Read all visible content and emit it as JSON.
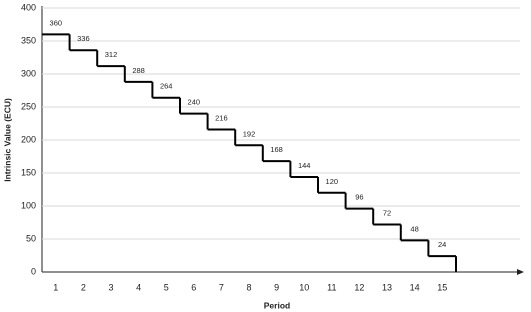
{
  "chart_data": {
    "type": "step",
    "x_label": "Period",
    "y_label": "Intrinsic Value (ECU)",
    "categories": [
      "1",
      "2",
      "3",
      "4",
      "5",
      "6",
      "7",
      "8",
      "9",
      "10",
      "11",
      "12",
      "13",
      "14",
      "15"
    ],
    "values": [
      360,
      336,
      312,
      288,
      264,
      240,
      216,
      192,
      168,
      144,
      120,
      96,
      72,
      48,
      24
    ],
    "color": "#000000",
    "ylim": [
      0,
      400
    ],
    "yticks": [
      0,
      50,
      100,
      150,
      200,
      250,
      300,
      350,
      400
    ],
    "grid": true
  }
}
